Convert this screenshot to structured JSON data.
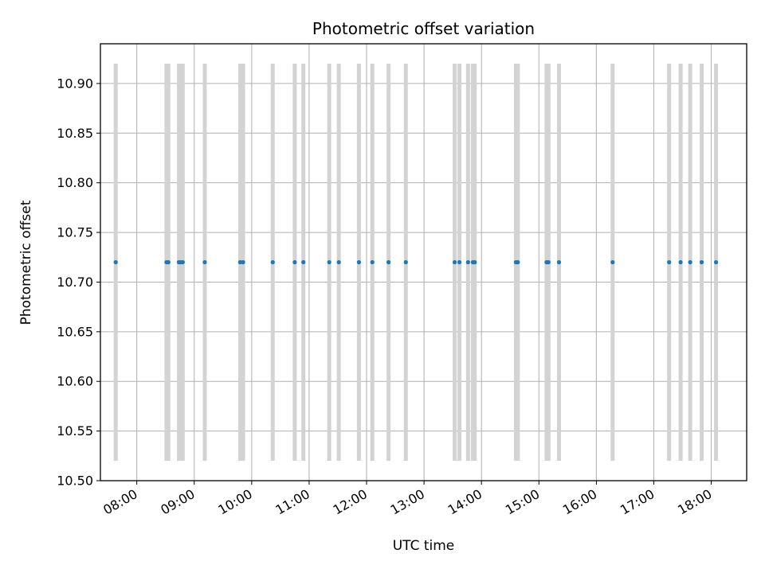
{
  "chart_data": {
    "type": "scatter",
    "title": "Photometric offset variation",
    "xlabel": "UTC time",
    "ylabel": "Photometric offset",
    "x_axis_type": "time",
    "x_range": [
      "07:22",
      "18:37"
    ],
    "ylim": [
      10.5,
      10.94
    ],
    "x_ticks": [
      "08:00",
      "09:00",
      "10:00",
      "11:00",
      "12:00",
      "13:00",
      "14:00",
      "15:00",
      "16:00",
      "17:00",
      "18:00"
    ],
    "y_ticks": [
      "10.50",
      "10.55",
      "10.60",
      "10.65",
      "10.70",
      "10.75",
      "10.80",
      "10.85",
      "10.90"
    ],
    "grid": true,
    "point_color": "#1f77b4",
    "band_color": "#d3d3d3",
    "bands": {
      "y_range": [
        10.52,
        10.92
      ],
      "x": [
        "07:38",
        "08:31",
        "08:33",
        "08:44",
        "08:46",
        "08:48",
        "09:11",
        "09:48",
        "09:51",
        "10:22",
        "10:45",
        "10:54",
        "11:21",
        "11:31",
        "11:52",
        "12:06",
        "12:23",
        "12:41",
        "13:32",
        "13:37",
        "13:46",
        "13:51",
        "13:53",
        "14:36",
        "14:38",
        "15:08",
        "15:10",
        "15:21",
        "16:17",
        "17:16",
        "17:28",
        "17:38",
        "17:50",
        "18:05"
      ]
    },
    "series": [
      {
        "y": 10.72,
        "x": [
          "07:38",
          "08:31",
          "08:33",
          "08:44",
          "08:46",
          "08:48",
          "09:11",
          "09:48",
          "09:51",
          "10:22",
          "10:45",
          "10:54",
          "11:21",
          "11:31",
          "11:52",
          "12:06",
          "12:23",
          "12:41",
          "13:32",
          "13:37",
          "13:46",
          "13:51",
          "13:53",
          "14:36",
          "14:38",
          "15:08",
          "15:10",
          "15:21",
          "16:17",
          "17:16",
          "17:28",
          "17:38",
          "17:50",
          "18:05"
        ]
      }
    ]
  }
}
